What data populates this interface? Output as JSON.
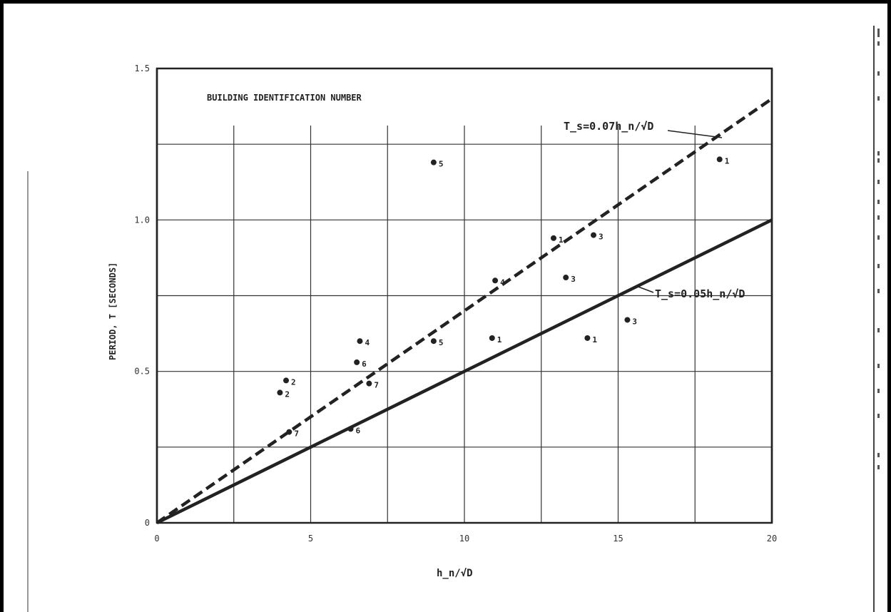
{
  "chart_data": {
    "type": "scatter",
    "title": "BUILDING IDENTIFICATION NUMBER",
    "xlabel": "h_n/√D",
    "ylabel": "PERIOD, T [SECONDS]",
    "xlim": [
      0,
      20
    ],
    "ylim": [
      0,
      1.5
    ],
    "xticks": [
      "0",
      "5",
      "10",
      "15",
      "20"
    ],
    "yticks": [
      "0",
      "0.5",
      "1.0",
      "1.5"
    ],
    "grid": true,
    "points": [
      {
        "x": 4.0,
        "y": 0.43,
        "label": "2"
      },
      {
        "x": 4.2,
        "y": 0.47,
        "label": "2"
      },
      {
        "x": 4.3,
        "y": 0.3,
        "label": "7"
      },
      {
        "x": 6.3,
        "y": 0.31,
        "label": "6"
      },
      {
        "x": 6.5,
        "y": 0.53,
        "label": "6"
      },
      {
        "x": 6.6,
        "y": 0.6,
        "label": "4"
      },
      {
        "x": 6.9,
        "y": 0.46,
        "label": "7"
      },
      {
        "x": 9.0,
        "y": 1.19,
        "label": "5"
      },
      {
        "x": 9.0,
        "y": 0.6,
        "label": "5"
      },
      {
        "x": 10.9,
        "y": 0.61,
        "label": "1"
      },
      {
        "x": 11.0,
        "y": 0.8,
        "label": "4"
      },
      {
        "x": 12.9,
        "y": 0.94,
        "label": "1"
      },
      {
        "x": 13.3,
        "y": 0.81,
        "label": "3"
      },
      {
        "x": 14.0,
        "y": 0.61,
        "label": "1"
      },
      {
        "x": 14.2,
        "y": 0.95,
        "label": "3"
      },
      {
        "x": 15.3,
        "y": 0.67,
        "label": "3"
      },
      {
        "x": 18.3,
        "y": 1.2,
        "label": "1"
      }
    ],
    "lines": [
      {
        "name": "T_s=0.07h_n/√D",
        "style": "dashed",
        "slope": 0.07,
        "intercept": 0
      },
      {
        "name": "T_s=0.05h_n/√D",
        "style": "solid",
        "slope": 0.05,
        "intercept": 0
      }
    ]
  }
}
